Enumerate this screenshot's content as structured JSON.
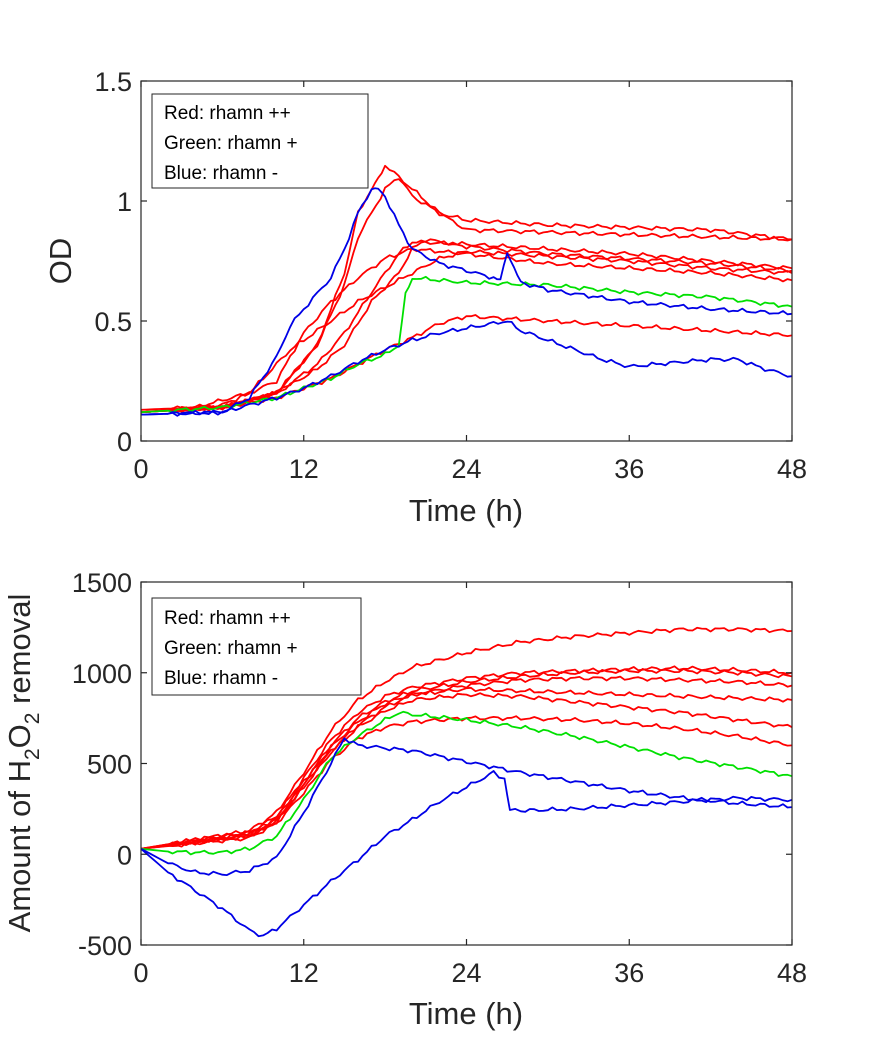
{
  "colors": {
    "red": "#ff0000",
    "green": "#00e000",
    "blue": "#0000e6",
    "axis": "#262626"
  },
  "chart_data": [
    {
      "type": "line",
      "title": "",
      "xlabel": "Time (h)",
      "ylabel": "OD",
      "xlim": [
        0,
        48
      ],
      "ylim": [
        0,
        1.5
      ],
      "xticks": [
        0,
        12,
        24,
        36,
        48
      ],
      "yticks": [
        0,
        0.5,
        1,
        1.5
      ],
      "xtick_labels": [
        "0",
        "12",
        "24",
        "36",
        "48"
      ],
      "ytick_labels": [
        "0",
        "0.5",
        "1",
        "1.5"
      ],
      "grid": false,
      "legend": {
        "placement": "top-left",
        "entries": [
          "Red: rhamn ++",
          "Green: rhamn +",
          "Blue: rhamn -"
        ]
      },
      "series": [
        {
          "color": "red",
          "x": [
            0,
            6,
            10,
            13,
            15,
            16,
            17,
            17.5,
            18,
            19,
            20,
            22,
            24,
            30,
            36,
            42,
            48
          ],
          "y": [
            0.12,
            0.14,
            0.2,
            0.4,
            0.7,
            0.95,
            1.05,
            1.1,
            1.15,
            1.1,
            1.05,
            0.95,
            0.92,
            0.9,
            0.89,
            0.88,
            0.84
          ]
        },
        {
          "color": "red",
          "x": [
            0,
            6,
            10,
            13,
            15,
            16,
            17,
            18,
            19,
            20,
            22,
            24,
            30,
            36,
            42,
            48
          ],
          "y": [
            0.12,
            0.14,
            0.2,
            0.4,
            0.65,
            0.85,
            0.95,
            1.05,
            1.1,
            1.02,
            0.95,
            0.88,
            0.87,
            0.86,
            0.85,
            0.84
          ]
        },
        {
          "color": "red",
          "x": [
            0,
            6,
            10,
            13,
            15,
            17,
            19,
            20,
            24,
            30,
            36,
            42,
            48
          ],
          "y": [
            0.12,
            0.14,
            0.2,
            0.32,
            0.45,
            0.62,
            0.78,
            0.83,
            0.82,
            0.8,
            0.78,
            0.75,
            0.72
          ]
        },
        {
          "color": "red",
          "x": [
            0,
            6,
            10,
            13,
            15,
            17,
            19,
            20,
            21,
            24,
            30,
            36,
            42,
            48
          ],
          "y": [
            0.12,
            0.14,
            0.2,
            0.3,
            0.4,
            0.58,
            0.7,
            0.8,
            0.84,
            0.81,
            0.78,
            0.76,
            0.74,
            0.71
          ]
        },
        {
          "color": "red",
          "x": [
            0,
            6,
            10,
            12,
            14,
            16,
            18,
            20,
            24,
            30,
            36,
            42,
            48
          ],
          "y": [
            0.12,
            0.15,
            0.25,
            0.45,
            0.58,
            0.68,
            0.76,
            0.8,
            0.78,
            0.74,
            0.72,
            0.7,
            0.67
          ]
        },
        {
          "color": "red",
          "x": [
            0,
            4,
            8,
            11,
            14,
            16,
            18,
            20,
            22,
            24,
            30,
            36,
            42,
            48
          ],
          "y": [
            0.13,
            0.14,
            0.2,
            0.38,
            0.5,
            0.58,
            0.64,
            0.7,
            0.76,
            0.79,
            0.77,
            0.75,
            0.72,
            0.7
          ]
        },
        {
          "color": "red",
          "x": [
            0,
            6,
            10,
            12,
            14,
            16,
            18,
            20,
            22,
            24,
            30,
            36,
            42,
            48
          ],
          "y": [
            0.12,
            0.14,
            0.18,
            0.22,
            0.26,
            0.32,
            0.38,
            0.43,
            0.49,
            0.52,
            0.5,
            0.48,
            0.46,
            0.44
          ]
        },
        {
          "color": "green",
          "x": [
            0,
            6,
            10,
            12,
            14,
            16,
            18,
            19,
            19.5,
            20,
            22,
            24,
            30,
            36,
            42,
            48
          ],
          "y": [
            0.12,
            0.14,
            0.18,
            0.22,
            0.26,
            0.32,
            0.36,
            0.4,
            0.62,
            0.68,
            0.67,
            0.66,
            0.65,
            0.62,
            0.6,
            0.56
          ]
        },
        {
          "color": "blue",
          "x": [
            0,
            6,
            8,
            10,
            11,
            12,
            14,
            15,
            16,
            17,
            17.5,
            18,
            19,
            20,
            22,
            24,
            26,
            26.5,
            27,
            27.5,
            28,
            30,
            36,
            42,
            48
          ],
          "y": [
            0.11,
            0.12,
            0.18,
            0.35,
            0.48,
            0.55,
            0.68,
            0.8,
            0.95,
            1.05,
            1.06,
            1.02,
            0.9,
            0.8,
            0.74,
            0.71,
            0.68,
            0.68,
            0.79,
            0.72,
            0.66,
            0.63,
            0.58,
            0.55,
            0.53
          ]
        },
        {
          "color": "blue",
          "x": [
            0,
            6,
            10,
            12,
            14,
            16,
            18,
            20,
            22,
            24,
            26,
            27,
            28,
            30,
            32,
            34,
            36,
            40,
            42,
            44,
            46,
            48
          ],
          "y": [
            0.11,
            0.12,
            0.18,
            0.22,
            0.27,
            0.33,
            0.38,
            0.42,
            0.45,
            0.47,
            0.49,
            0.5,
            0.46,
            0.42,
            0.38,
            0.34,
            0.31,
            0.33,
            0.34,
            0.34,
            0.3,
            0.27
          ]
        }
      ]
    },
    {
      "type": "line",
      "title": "",
      "xlabel": "Time (h)",
      "ylabel_parts": [
        "Amount of H",
        "2",
        "O",
        "2",
        " removal"
      ],
      "xlim": [
        0,
        48
      ],
      "ylim": [
        -500,
        1500
      ],
      "xticks": [
        0,
        12,
        24,
        36,
        48
      ],
      "yticks": [
        -500,
        0,
        500,
        1000,
        1500
      ],
      "xtick_labels": [
        "0",
        "12",
        "24",
        "36",
        "48"
      ],
      "ytick_labels": [
        "-500",
        "0",
        "500",
        "1000",
        "1500"
      ],
      "grid": false,
      "legend": {
        "placement": "top-left",
        "entries": [
          "Red: rhamn ++",
          "Green: rhamn +",
          "Blue: rhamn -"
        ]
      },
      "series": [
        {
          "color": "red",
          "x": [
            0,
            4,
            8,
            10,
            12,
            14,
            16,
            18,
            20,
            24,
            28,
            32,
            36,
            40,
            44,
            48
          ],
          "y": [
            30,
            80,
            130,
            230,
            450,
            680,
            850,
            950,
            1030,
            1110,
            1170,
            1200,
            1220,
            1240,
            1240,
            1230
          ]
        },
        {
          "color": "red",
          "x": [
            0,
            4,
            8,
            10,
            12,
            14,
            16,
            18,
            20,
            24,
            28,
            32,
            36,
            40,
            44,
            48
          ],
          "y": [
            30,
            80,
            120,
            210,
            420,
            630,
            780,
            870,
            920,
            970,
            1000,
            1010,
            1020,
            1025,
            1015,
            1000
          ]
        },
        {
          "color": "red",
          "x": [
            0,
            4,
            8,
            10,
            12,
            14,
            16,
            18,
            20,
            24,
            28,
            32,
            36,
            40,
            44,
            48
          ],
          "y": [
            30,
            70,
            110,
            200,
            400,
            600,
            750,
            840,
            900,
            950,
            980,
            1000,
            1010,
            1010,
            1000,
            980
          ]
        },
        {
          "color": "red",
          "x": [
            0,
            4,
            8,
            10,
            12,
            14,
            16,
            18,
            20,
            24,
            28,
            32,
            36,
            40,
            44,
            48
          ],
          "y": [
            30,
            70,
            110,
            190,
            390,
            590,
            730,
            830,
            880,
            930,
            960,
            970,
            970,
            960,
            950,
            930
          ]
        },
        {
          "color": "red",
          "x": [
            0,
            4,
            8,
            10,
            12,
            14,
            16,
            18,
            20,
            24,
            28,
            32,
            36,
            40,
            44,
            48
          ],
          "y": [
            30,
            65,
            100,
            180,
            380,
            570,
            710,
            810,
            880,
            910,
            900,
            890,
            880,
            870,
            860,
            850
          ]
        },
        {
          "color": "red",
          "x": [
            0,
            4,
            8,
            10,
            12,
            14,
            16,
            18,
            20,
            24,
            28,
            32,
            36,
            40,
            44,
            48
          ],
          "y": [
            30,
            65,
            100,
            180,
            370,
            560,
            700,
            790,
            850,
            880,
            870,
            840,
            810,
            780,
            740,
            700
          ]
        },
        {
          "color": "red",
          "x": [
            0,
            4,
            8,
            10,
            12,
            14,
            16,
            18,
            20,
            24,
            28,
            32,
            36,
            40,
            44,
            48
          ],
          "y": [
            30,
            60,
            90,
            170,
            340,
            520,
            640,
            700,
            730,
            750,
            750,
            740,
            720,
            690,
            650,
            600
          ]
        },
        {
          "color": "green",
          "x": [
            0,
            2,
            4,
            6,
            8,
            10,
            12,
            14,
            16,
            18,
            19,
            20,
            24,
            28,
            32,
            36,
            40,
            44,
            48
          ],
          "y": [
            30,
            15,
            10,
            10,
            30,
            100,
            300,
            530,
            650,
            740,
            780,
            770,
            740,
            700,
            650,
            590,
            530,
            480,
            430
          ]
        },
        {
          "color": "blue",
          "x": [
            0,
            2,
            4,
            6,
            8,
            10,
            12,
            14,
            15,
            16,
            20,
            24,
            28,
            32,
            36,
            40,
            44,
            48
          ],
          "y": [
            30,
            -50,
            -100,
            -110,
            -90,
            -20,
            230,
            500,
            640,
            600,
            570,
            510,
            450,
            400,
            350,
            310,
            280,
            260
          ]
        },
        {
          "color": "blue",
          "x": [
            0,
            2,
            4,
            6,
            8,
            9,
            10,
            12,
            14,
            16,
            18,
            20,
            22,
            24,
            26,
            26.8,
            27.2,
            28,
            32,
            36,
            40,
            44,
            48
          ],
          "y": [
            30,
            -100,
            -200,
            -300,
            -420,
            -450,
            -410,
            -280,
            -150,
            -30,
            100,
            190,
            290,
            370,
            450,
            410,
            250,
            240,
            250,
            270,
            290,
            310,
            300
          ]
        }
      ]
    }
  ]
}
